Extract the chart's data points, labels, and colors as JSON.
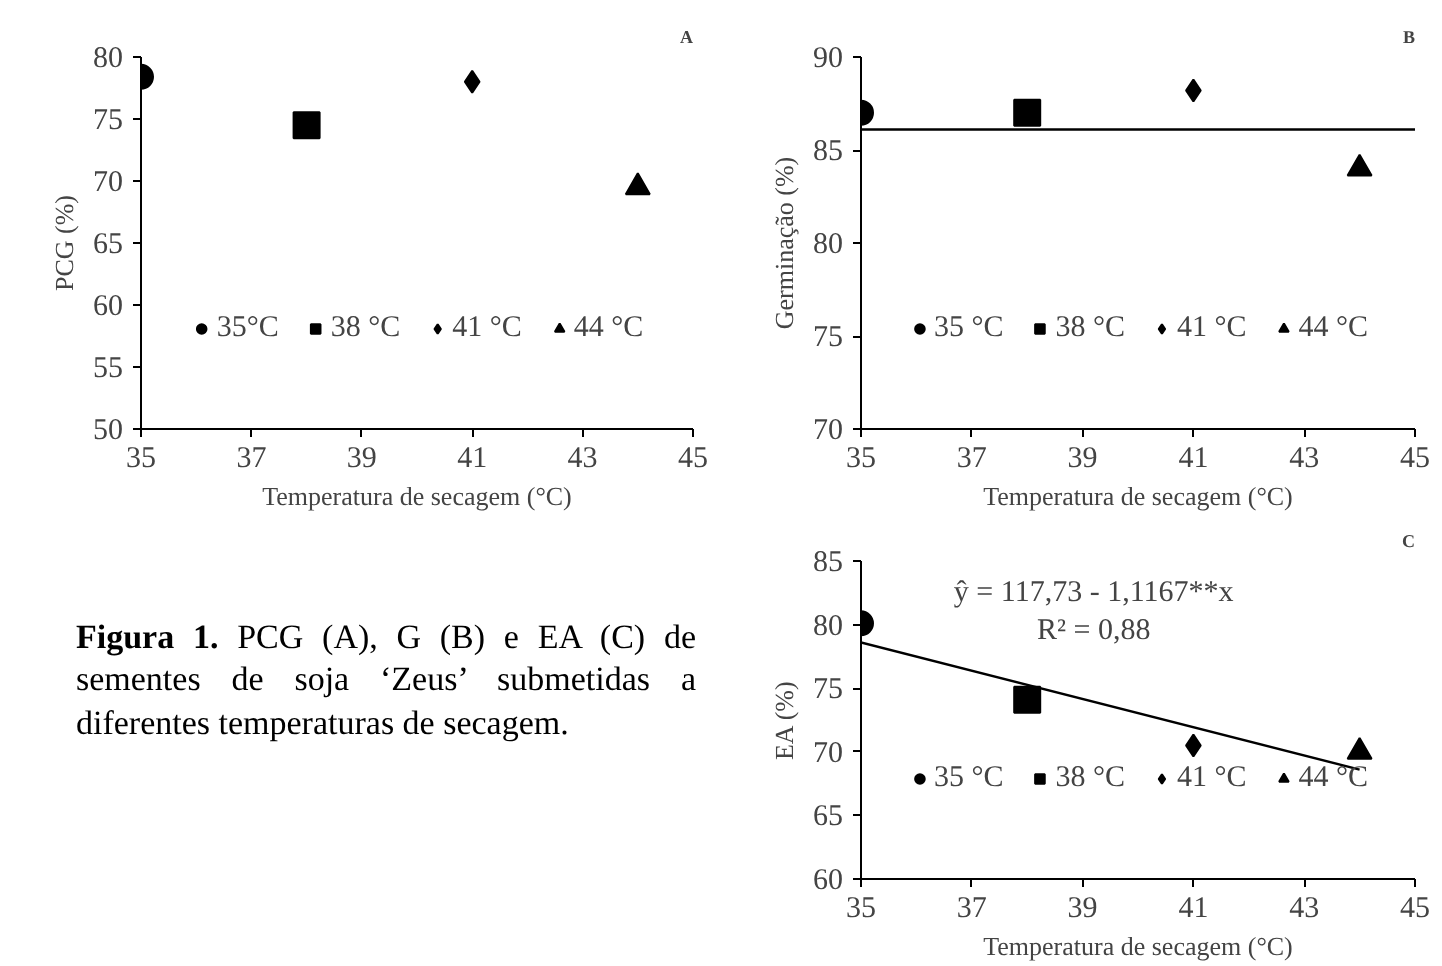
{
  "chart_data": [
    {
      "type": "scatter",
      "title": "A",
      "xlabel": "Temperatura de secagem (°C)",
      "ylabel": "PCG (%)",
      "xlim": [
        35,
        45
      ],
      "xticks": [
        35,
        37,
        39,
        41,
        43,
        45
      ],
      "ylim": [
        50,
        80
      ],
      "yticks": [
        50,
        55,
        60,
        65,
        70,
        75,
        80
      ],
      "grid": false,
      "legend": "bottom",
      "series": [
        {
          "name": "35°C",
          "color": "#000000",
          "marker": "circle",
          "x": [
            35
          ],
          "values": [
            78.4
          ]
        },
        {
          "name": "38 °C",
          "color": "#000000",
          "marker": "square",
          "x": [
            38
          ],
          "values": [
            74.5
          ]
        },
        {
          "name": "41 °C",
          "color": "#000000",
          "marker": "diamond",
          "x": [
            41
          ],
          "values": [
            78.0
          ]
        },
        {
          "name": "44 °C",
          "color": "#000000",
          "marker": "triangle",
          "x": [
            44
          ],
          "values": [
            69.5
          ]
        }
      ]
    },
    {
      "type": "scatter",
      "title": "B",
      "xlabel": "Temperatura de secagem (°C)",
      "ylabel": "Germinação (%)",
      "xlim": [
        35,
        45
      ],
      "xticks": [
        35,
        37,
        39,
        41,
        43,
        45
      ],
      "ylim": [
        70,
        90
      ],
      "yticks": [
        70,
        75,
        80,
        85,
        90
      ],
      "grid": false,
      "legend": "bottom",
      "ref_lines": [
        {
          "axis": "y",
          "value": 86.1,
          "color": "#000000"
        }
      ],
      "series": [
        {
          "name": "35 °C",
          "color": "#000000",
          "marker": "circle",
          "x": [
            35
          ],
          "values": [
            87.0
          ]
        },
        {
          "name": "38 °C",
          "color": "#000000",
          "marker": "square",
          "x": [
            38
          ],
          "values": [
            87.0
          ]
        },
        {
          "name": "41 °C",
          "color": "#000000",
          "marker": "diamond",
          "x": [
            41
          ],
          "values": [
            88.2
          ]
        },
        {
          "name": "44 °C",
          "color": "#000000",
          "marker": "triangle",
          "x": [
            44
          ],
          "values": [
            84.0
          ]
        }
      ]
    },
    {
      "type": "other",
      "annotations": [
        "Figura 1.",
        "PCG (A), G (B) e EA (C) de sementes de soja ‘Zeus’ submetidas a diferentes temperaturas de secagem."
      ]
    },
    {
      "type": "scatter",
      "title": "C",
      "xlabel": "Temperatura de secagem (°C)",
      "ylabel": "EA (%)",
      "xlim": [
        35,
        45
      ],
      "xticks": [
        35,
        37,
        39,
        41,
        43,
        45
      ],
      "ylim": [
        60,
        85
      ],
      "yticks": [
        60,
        65,
        70,
        75,
        80,
        85
      ],
      "grid": false,
      "legend": "bottom",
      "annotations": [
        "ŷ = 117,73 - 1,1167**x",
        "R² = 0,88"
      ],
      "series": [
        {
          "name": "35 °C",
          "color": "#000000",
          "marker": "circle",
          "x": [
            35
          ],
          "values": [
            80.1
          ]
        },
        {
          "name": "38 °C",
          "color": "#000000",
          "marker": "square",
          "x": [
            38
          ],
          "values": [
            74.1
          ]
        },
        {
          "name": "41 °C",
          "color": "#000000",
          "marker": "diamond",
          "x": [
            41
          ],
          "values": [
            70.5
          ]
        },
        {
          "name": "44 °C",
          "color": "#000000",
          "marker": "triangle",
          "x": [
            44
          ],
          "values": [
            70.0
          ]
        },
        {
          "type": "line",
          "color": "#000000",
          "x": [
            35,
            44
          ],
          "values": [
            78.6,
            68.6
          ]
        }
      ]
    }
  ]
}
